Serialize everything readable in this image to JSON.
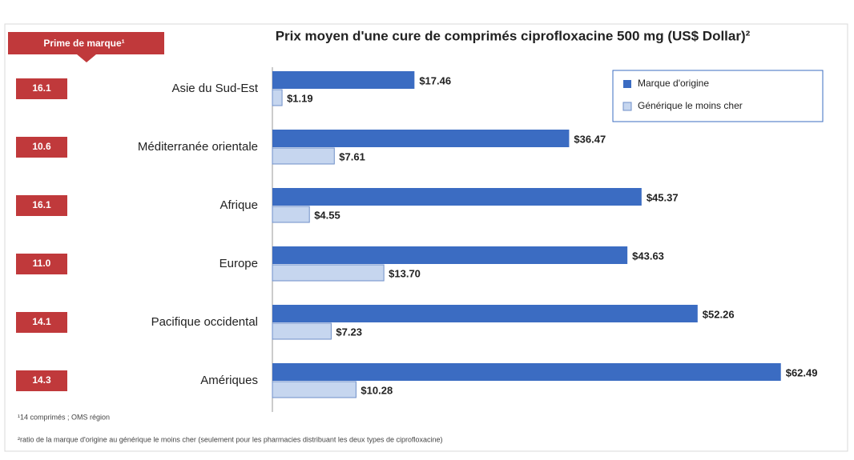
{
  "chart_data": {
    "type": "bar",
    "orientation": "horizontal",
    "title": "Prix moyen d'une cure de comprimés ciprofloxacine 500 mg  (US$ Dollar)²",
    "categories": [
      "Asie du Sud-Est",
      "Méditerranée orientale",
      "Afrique",
      "Europe",
      "Pacifique occidental",
      "Amériques"
    ],
    "series": [
      {
        "name": "Marque d'origine",
        "color": "#3b6cc2",
        "values": [
          17.46,
          36.47,
          45.37,
          43.63,
          52.26,
          62.49
        ],
        "value_labels": [
          "$17.46",
          "$36.47",
          "$45.37",
          "$43.63",
          "$52.26",
          "$62.49"
        ]
      },
      {
        "name": "Générique le moins cher",
        "color": "#c6d6ef",
        "values": [
          1.19,
          7.61,
          4.55,
          13.7,
          7.23,
          10.28
        ],
        "value_labels": [
          "$1.19",
          "$7.61",
          "$4.55",
          "$13.70",
          "$7.23",
          "$10.28"
        ]
      }
    ],
    "xlim": [
      0,
      70
    ],
    "legend": "top-right",
    "brand_premium": {
      "label": "Prime de marque¹",
      "values": [
        "16.1",
        "10.6",
        "16.1",
        "11.0",
        "14.1",
        "14.3"
      ]
    },
    "footnotes": [
      "¹14 comprimés ; OMS région",
      "²ratio de la marque d'origine au générique le moins cher (seulement pour les pharmacies distribuant les deux types de ciprofloxacine)"
    ]
  }
}
